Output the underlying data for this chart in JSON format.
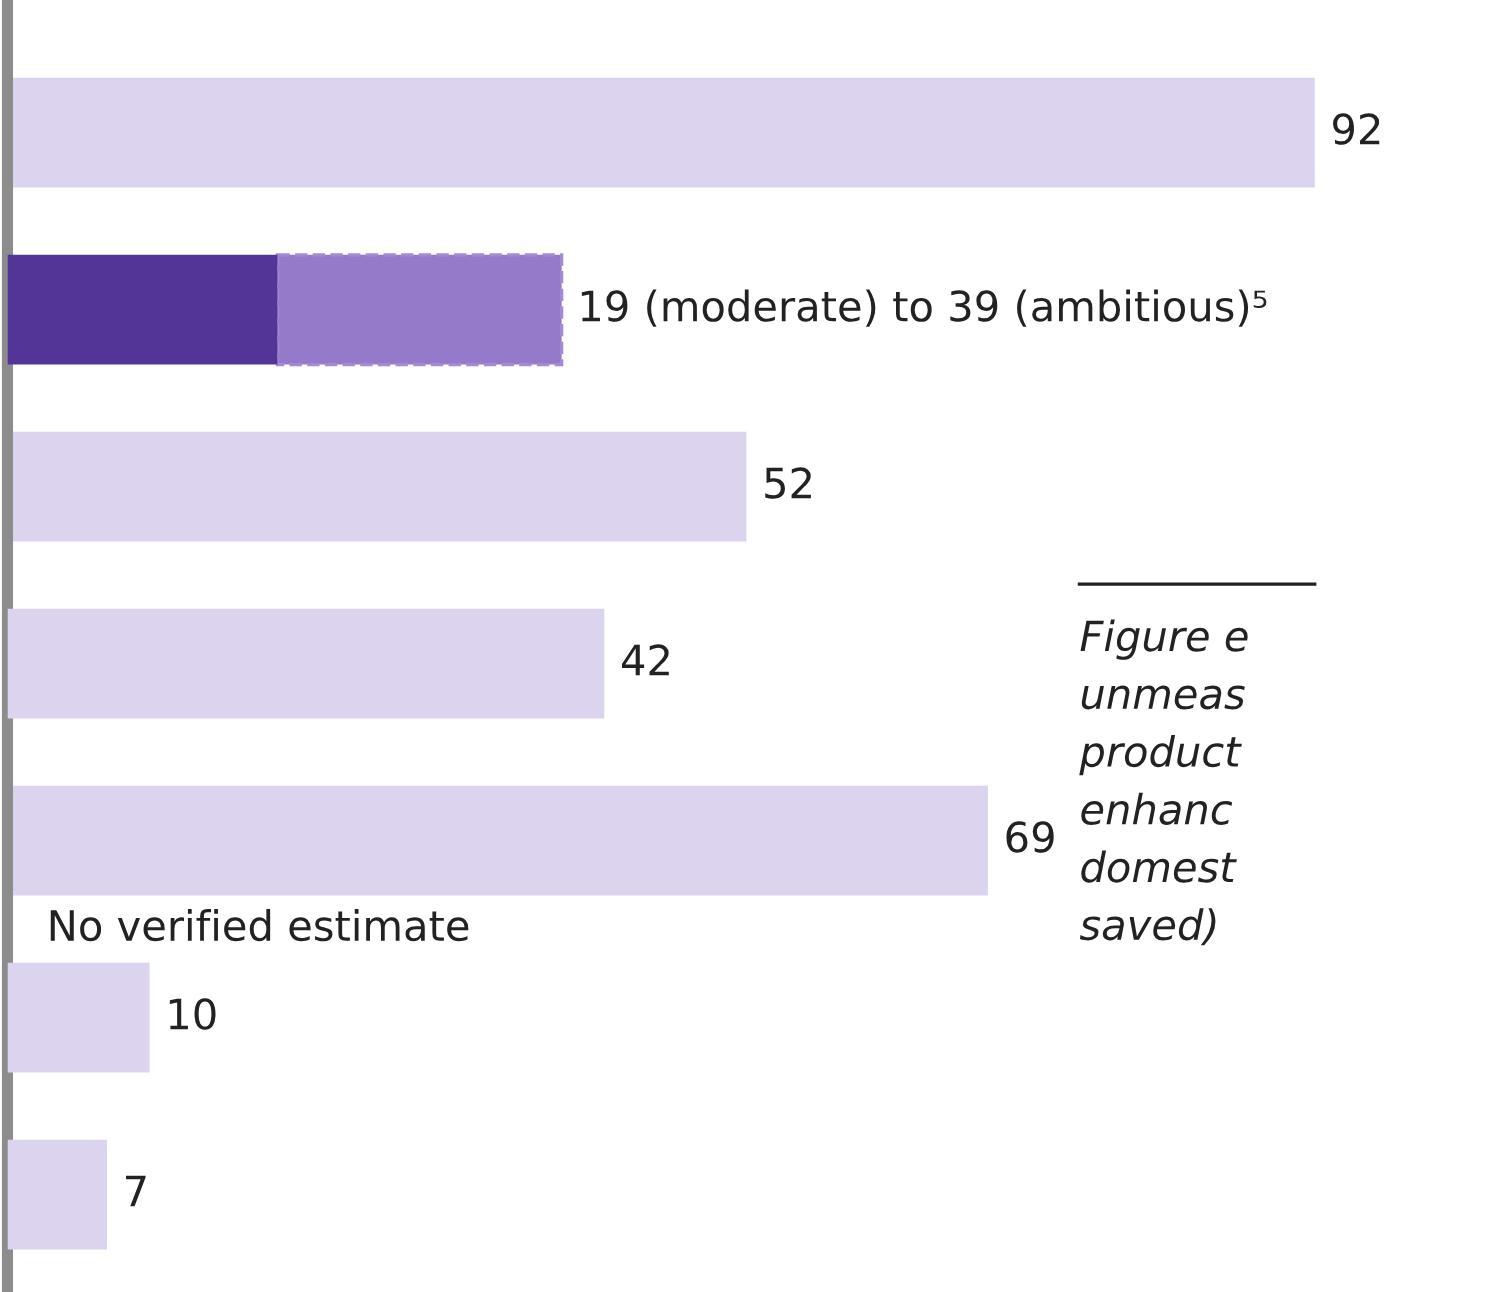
{
  "chart_data": {
    "type": "bar",
    "orientation": "horizontal",
    "stacked": true,
    "categories": [
      null,
      null,
      null,
      null,
      null,
      null,
      null
    ],
    "series": [
      {
        "colors": [
          "#dcd3ee",
          "#523596",
          "#dcd3ee",
          "#dcd3ee",
          "#dcd3ee",
          "#dcd3ee",
          "#dcd3ee"
        ],
        "values": [
          92,
          19,
          52,
          42,
          69,
          10,
          7
        ],
        "value_labels": [
          "92",
          null,
          "52",
          "42",
          "69",
          "10",
          "7"
        ]
      },
      {
        "color": "#957ac9",
        "line_style": "dashed",
        "values": [
          null,
          20,
          null,
          null,
          null,
          null,
          null
        ]
      }
    ],
    "totals": [
      null,
      "19 (moderate) to 39 (ambitious)⁵",
      null,
      null,
      null,
      null,
      null
    ],
    "annotations": [
      "No verified estimate",
      "Figure e\nunmeas\nproduct\nenhanc\ndomest\nsaved)"
    ]
  }
}
